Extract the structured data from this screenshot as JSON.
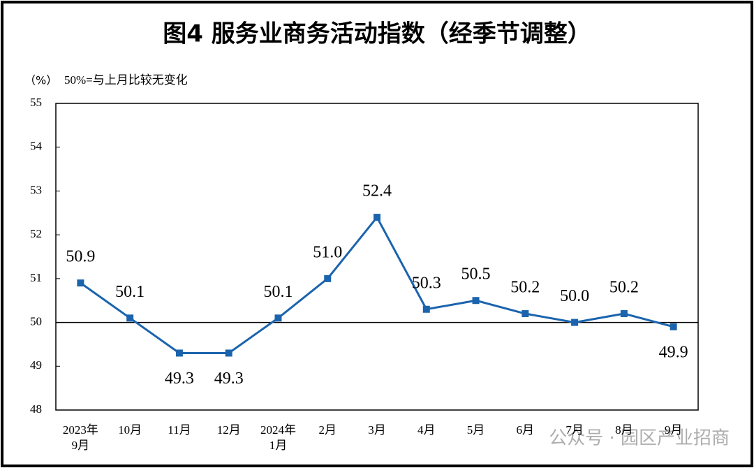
{
  "chart_data": {
    "type": "line",
    "title": "图4  服务业商务活动指数（经季节调整）",
    "y_label": "（%）",
    "annotation": "50%=与上月比较无变化",
    "watermark": "公众号 · 园区产业招商",
    "categories": [
      "2023年\n9月",
      "10月",
      "11月",
      "12月",
      "2024年\n1月",
      "2月",
      "3月",
      "4月",
      "5月",
      "6月",
      "7月",
      "8月",
      "9月"
    ],
    "values": [
      50.9,
      50.1,
      49.3,
      49.3,
      50.1,
      51.0,
      52.4,
      50.3,
      50.5,
      50.2,
      50.0,
      50.2,
      49.9
    ],
    "value_labels": [
      "50.9",
      "50.1",
      "49.3",
      "49.3",
      "50.1",
      "51.0",
      "52.4",
      "50.3",
      "50.5",
      "50.2",
      "50.0",
      "50.2",
      "49.9"
    ],
    "color": "#1b64ad",
    "ylim": [
      48,
      55
    ],
    "yticks": [
      48,
      49,
      50,
      51,
      52,
      53,
      54,
      55
    ],
    "reference_line": 50
  }
}
